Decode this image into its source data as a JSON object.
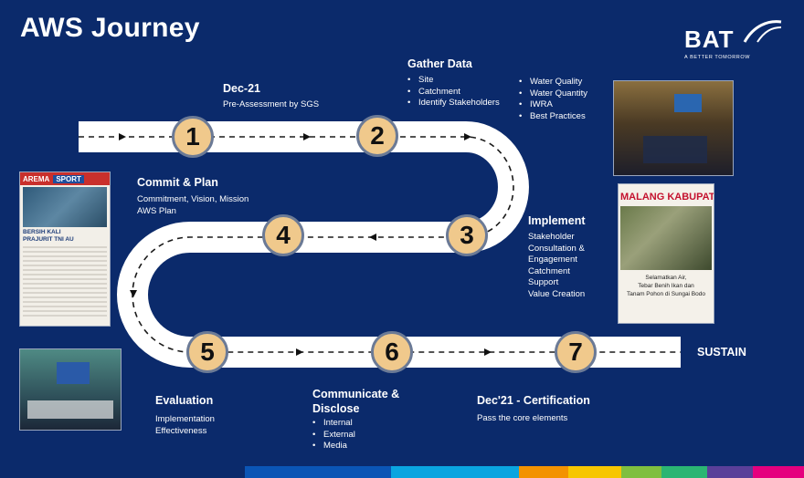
{
  "title": "AWS Journey",
  "logo": {
    "text": "BAT",
    "tagline": "A BETTER TOMORROW"
  },
  "steps": [
    {
      "number": "1"
    },
    {
      "number": "2"
    },
    {
      "number": "3"
    },
    {
      "number": "4"
    },
    {
      "number": "5"
    },
    {
      "number": "6"
    },
    {
      "number": "7"
    }
  ],
  "dec21": {
    "heading": "Dec-21",
    "sub": "Pre-Assessment by SGS"
  },
  "gather": {
    "heading": "Gather Data",
    "items": [
      "Site",
      "Catchment",
      "Identify Stakeholders"
    ]
  },
  "water": {
    "items": [
      "Water Quality",
      "Water Quantity",
      "IWRA",
      "Best Practices"
    ]
  },
  "commit": {
    "heading": "Commit & Plan",
    "lines": [
      "Commitment, Vision, Mission",
      "AWS Plan"
    ]
  },
  "implement": {
    "heading": "Implement",
    "lines": [
      "Stakeholder",
      "Consultation &",
      "Engagement",
      "Catchment",
      "Support",
      "Value Creation"
    ]
  },
  "evaluation": {
    "heading": "Evaluation",
    "lines": [
      "Implementation",
      "Effectiveness"
    ]
  },
  "communicate": {
    "heading_line1": "Communicate &",
    "heading_line2": "Disclose",
    "items": [
      "Internal",
      "External",
      "Media"
    ]
  },
  "cert": {
    "heading": "Dec'21 - Certification",
    "sub": "Pass the core elements"
  },
  "sustain": "SUSTAIN",
  "photos": {
    "newspaper_left": {
      "brand": "AREMA",
      "section": "SPORT",
      "headline_1": "BERSIH KALI",
      "headline_2": "PRAJURIT TNI AU"
    },
    "newspaper_right": {
      "header": "MALANG KABUPAT",
      "caption_1": "Selamatkan Air,",
      "caption_2": "Tebar Benih Ikan dan",
      "caption_3": "Tanam Pohon di Sungai Bodo"
    }
  },
  "colors": {
    "background": "#0b2a6b",
    "road": "#ffffff",
    "circle_fill": "#f0c98c",
    "circle_border": "#6b7a96",
    "footer": [
      "#0b55b5",
      "#0aa5e0",
      "#ffffff",
      "#f39200",
      "#f7c600",
      "#7fbf3f",
      "#2bb573",
      "#5a3f99",
      "#e5007e"
    ]
  }
}
